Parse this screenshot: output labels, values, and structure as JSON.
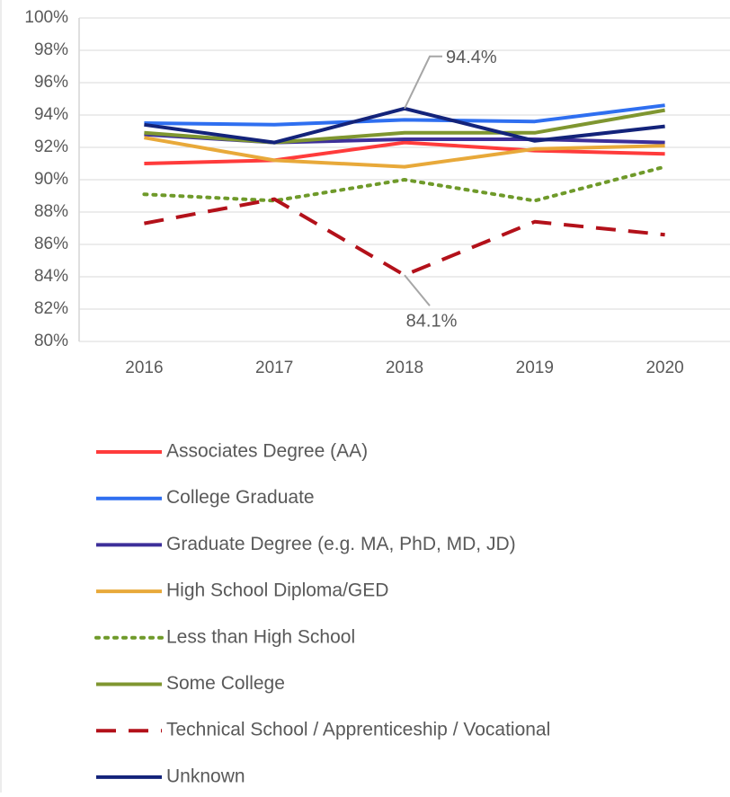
{
  "chart_data": {
    "type": "line",
    "categories": [
      "2016",
      "2017",
      "2018",
      "2019",
      "2020"
    ],
    "ylim": [
      80,
      100
    ],
    "yticks": [
      {
        "value": 80,
        "label": "80%"
      },
      {
        "value": 82,
        "label": "82%"
      },
      {
        "value": 84,
        "label": "84%"
      },
      {
        "value": 86,
        "label": "86%"
      },
      {
        "value": 88,
        "label": "88%"
      },
      {
        "value": 90,
        "label": "90%"
      },
      {
        "value": 92,
        "label": "92%"
      },
      {
        "value": 94,
        "label": "94%"
      },
      {
        "value": 96,
        "label": "96%"
      },
      {
        "value": 98,
        "label": "98%"
      },
      {
        "value": 100,
        "label": "100%"
      }
    ],
    "grid": true,
    "legend": "bottom",
    "series": [
      {
        "name": "Associates Degree (AA)",
        "color": "#ff3b3b",
        "dash": "solid",
        "values": [
          91.0,
          91.2,
          92.3,
          91.8,
          91.6
        ]
      },
      {
        "name": "College Graduate",
        "color": "#2f6ff0",
        "dash": "solid",
        "values": [
          93.5,
          93.4,
          93.7,
          93.6,
          94.6
        ]
      },
      {
        "name": "Graduate Degree (e.g. MA, PhD, MD, JD)",
        "color": "#3d2f9a",
        "dash": "solid",
        "values": [
          92.8,
          92.3,
          92.5,
          92.5,
          92.3
        ]
      },
      {
        "name": "High School Diploma/GED",
        "color": "#e8a93a",
        "dash": "solid",
        "values": [
          92.6,
          91.2,
          90.8,
          91.9,
          92.1
        ]
      },
      {
        "name": "Less than High School",
        "color": "#6f9a2a",
        "dash": "dotted",
        "values": [
          89.1,
          88.7,
          90.0,
          88.7,
          90.8
        ]
      },
      {
        "name": "Some College",
        "color": "#7f9630",
        "dash": "solid",
        "values": [
          92.9,
          92.3,
          92.9,
          92.9,
          94.3
        ]
      },
      {
        "name": "Technical School / Apprenticeship / Vocational",
        "color": "#b3111a",
        "dash": "dashed",
        "values": [
          87.3,
          88.8,
          84.1,
          87.4,
          86.6
        ],
        "value_labels": [
          null,
          null,
          "84.1%",
          null,
          null
        ]
      },
      {
        "name": "Unknown",
        "color": "#13237a",
        "dash": "solid",
        "values": [
          93.4,
          92.3,
          94.4,
          92.4,
          93.3
        ],
        "value_labels": [
          null,
          null,
          "94.4%",
          null,
          null
        ]
      }
    ]
  }
}
